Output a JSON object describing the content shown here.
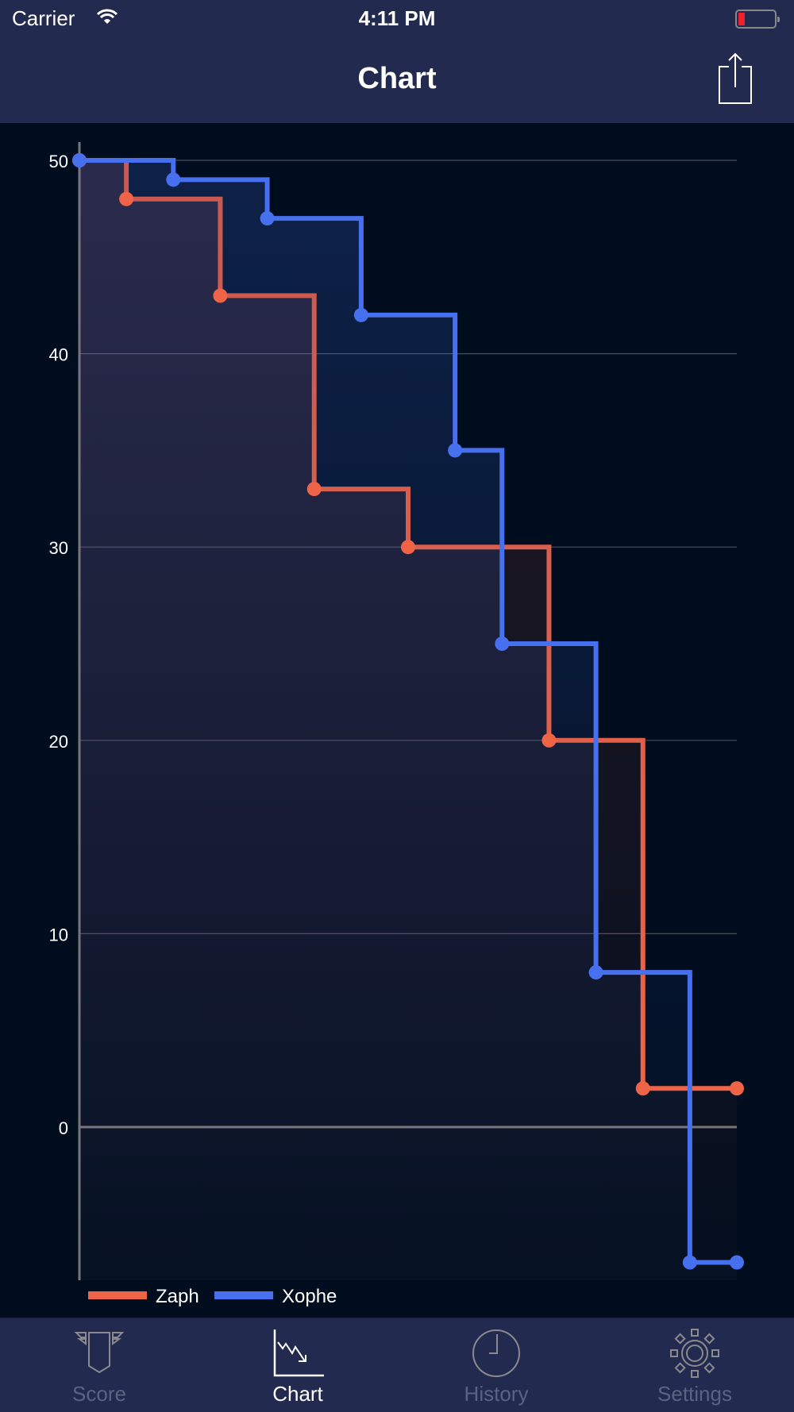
{
  "status_bar": {
    "carrier": "Carrier",
    "time": "4:11 PM",
    "battery_level": 0.15,
    "battery_color": "#f0212a"
  },
  "nav": {
    "title": "Chart",
    "share_icon": "share-icon"
  },
  "tabs": [
    {
      "label": "Score",
      "icon": "shield-icon",
      "active": false
    },
    {
      "label": "Chart",
      "icon": "chart-icon",
      "active": true
    },
    {
      "label": "History",
      "icon": "clock-icon",
      "active": false
    },
    {
      "label": "Settings",
      "icon": "gear-icon",
      "active": false
    }
  ],
  "chart_data": {
    "type": "line",
    "step": true,
    "ylim": [
      -7,
      50
    ],
    "xlim": [
      0,
      14
    ],
    "yticks": [
      0,
      10,
      20,
      30,
      40,
      50
    ],
    "grid": true,
    "legend_placement": "bottom-left",
    "series": [
      {
        "name": "Zaph",
        "color": "#ef6446",
        "points": [
          [
            0,
            50
          ],
          [
            1,
            48
          ],
          [
            3,
            43
          ],
          [
            5,
            33
          ],
          [
            7,
            30
          ],
          [
            10,
            20
          ],
          [
            12,
            2
          ],
          [
            14,
            2
          ]
        ]
      },
      {
        "name": "Xophe",
        "color": "#4670ee",
        "points": [
          [
            0,
            50
          ],
          [
            2,
            49
          ],
          [
            4,
            47
          ],
          [
            6,
            42
          ],
          [
            8,
            35
          ],
          [
            9,
            25
          ],
          [
            11,
            8
          ],
          [
            13,
            -7
          ],
          [
            14,
            -7
          ]
        ]
      }
    ]
  }
}
